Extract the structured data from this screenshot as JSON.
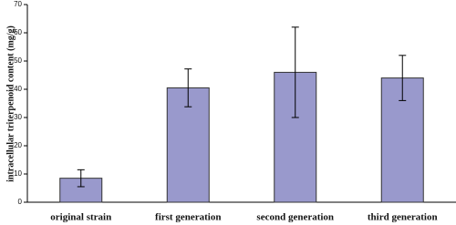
{
  "chart_data": {
    "type": "bar",
    "y_label": "intracellular triterpenoid content (mg/g)",
    "categories": [
      "original strain",
      "first generation",
      "second generation",
      "third generation"
    ],
    "values": [
      8.5,
      40.5,
      46,
      44
    ],
    "errors": [
      3,
      6.7,
      16,
      8
    ],
    "color": "#9999cc",
    "ylim": [
      0,
      70
    ],
    "yticks": [
      0,
      10,
      20,
      30,
      40,
      50,
      60,
      70
    ]
  }
}
